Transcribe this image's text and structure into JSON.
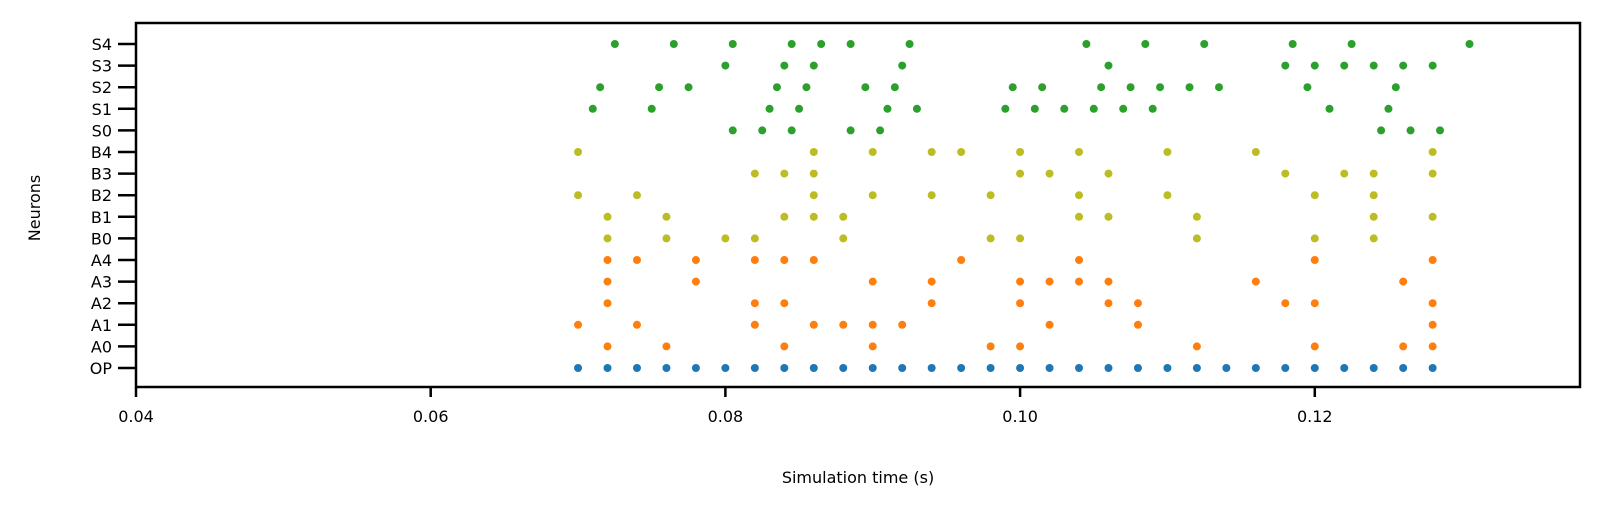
{
  "chart_data": {
    "type": "scatter",
    "title": "",
    "xlabel": "Simulation time (s)",
    "ylabel": "Neurons",
    "xlim": [
      0.04,
      0.138
    ],
    "xticks": [
      0.04,
      0.06,
      0.08,
      0.1,
      0.12
    ],
    "xtick_labels": [
      "0.04",
      "0.06",
      "0.08",
      "0.10",
      "0.12"
    ],
    "categories": [
      "OP",
      "A0",
      "A1",
      "A2",
      "A3",
      "A4",
      "B0",
      "B1",
      "B2",
      "B3",
      "B4",
      "S0",
      "S1",
      "S2",
      "S3",
      "S4"
    ],
    "grid": false,
    "legend": "none",
    "colors": {
      "OP": "#1f77b4",
      "A": "#ff7f0e",
      "B": "#bcbd22",
      "S": "#2ca02c"
    },
    "series": [
      {
        "neuron": "OP",
        "times": [
          0.07,
          0.072,
          0.074,
          0.076,
          0.078,
          0.08,
          0.082,
          0.084,
          0.086,
          0.088,
          0.09,
          0.092,
          0.094,
          0.096,
          0.098,
          0.1,
          0.102,
          0.104,
          0.106,
          0.108,
          0.11,
          0.112,
          0.114,
          0.116,
          0.118,
          0.12,
          0.122,
          0.124,
          0.126,
          0.128
        ]
      },
      {
        "neuron": "A0",
        "times": [
          0.072,
          0.076,
          0.084,
          0.09,
          0.098,
          0.1,
          0.112,
          0.12,
          0.126,
          0.128
        ]
      },
      {
        "neuron": "A1",
        "times": [
          0.07,
          0.074,
          0.082,
          0.086,
          0.088,
          0.09,
          0.092,
          0.102,
          0.108,
          0.128
        ]
      },
      {
        "neuron": "A2",
        "times": [
          0.072,
          0.082,
          0.084,
          0.094,
          0.1,
          0.106,
          0.108,
          0.118,
          0.12,
          0.128
        ]
      },
      {
        "neuron": "A3",
        "times": [
          0.072,
          0.078,
          0.09,
          0.094,
          0.1,
          0.102,
          0.104,
          0.106,
          0.116,
          0.126
        ]
      },
      {
        "neuron": "A4",
        "times": [
          0.072,
          0.074,
          0.078,
          0.082,
          0.084,
          0.086,
          0.096,
          0.104,
          0.12,
          0.128
        ]
      },
      {
        "neuron": "B0",
        "times": [
          0.072,
          0.076,
          0.08,
          0.082,
          0.088,
          0.098,
          0.1,
          0.112,
          0.12,
          0.124
        ]
      },
      {
        "neuron": "B1",
        "times": [
          0.072,
          0.076,
          0.084,
          0.086,
          0.088,
          0.104,
          0.106,
          0.112,
          0.124,
          0.128
        ]
      },
      {
        "neuron": "B2",
        "times": [
          0.07,
          0.074,
          0.086,
          0.09,
          0.094,
          0.098,
          0.104,
          0.11,
          0.12,
          0.124
        ]
      },
      {
        "neuron": "B3",
        "times": [
          0.082,
          0.084,
          0.086,
          0.1,
          0.102,
          0.106,
          0.118,
          0.122,
          0.124,
          0.128
        ]
      },
      {
        "neuron": "B4",
        "times": [
          0.07,
          0.086,
          0.09,
          0.094,
          0.096,
          0.1,
          0.104,
          0.11,
          0.116,
          0.128
        ]
      },
      {
        "neuron": "S0",
        "times": [
          0.0805,
          0.0825,
          0.0845,
          0.0885,
          0.0905,
          0.1245,
          0.1265,
          0.1285
        ]
      },
      {
        "neuron": "S1",
        "times": [
          0.071,
          0.075,
          0.083,
          0.085,
          0.091,
          0.093,
          0.099,
          0.101,
          0.103,
          0.105,
          0.107,
          0.109,
          0.121,
          0.125
        ]
      },
      {
        "neuron": "S2",
        "times": [
          0.0715,
          0.0755,
          0.0775,
          0.0835,
          0.0855,
          0.0895,
          0.0915,
          0.0995,
          0.1015,
          0.1055,
          0.1075,
          0.1095,
          0.1115,
          0.1135,
          0.1195,
          0.1255
        ]
      },
      {
        "neuron": "S3",
        "times": [
          0.08,
          0.084,
          0.086,
          0.092,
          0.106,
          0.118,
          0.12,
          0.122,
          0.124,
          0.126,
          0.128
        ]
      },
      {
        "neuron": "S4",
        "times": [
          0.0725,
          0.0765,
          0.0805,
          0.0845,
          0.0865,
          0.0885,
          0.0925,
          0.1045,
          0.1085,
          0.1125,
          0.1185,
          0.1225,
          0.1305
        ]
      }
    ]
  }
}
